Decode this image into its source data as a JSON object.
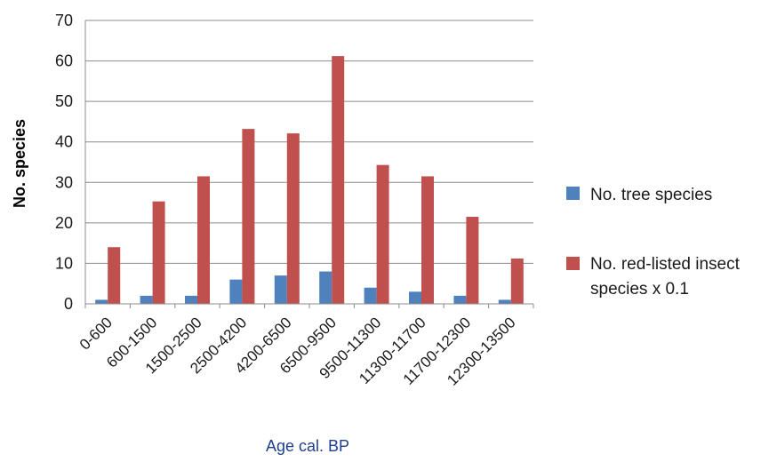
{
  "chart_data": {
    "type": "bar",
    "title": "",
    "xlabel": "Age cal. BP",
    "ylabel": "No. species",
    "ylim": [
      0,
      70
    ],
    "yticks": [
      0,
      10,
      20,
      30,
      40,
      50,
      60,
      70
    ],
    "grid": true,
    "legend_position": "right",
    "categories": [
      "0-600",
      "600-1500",
      "1500-2500",
      "2500-4200",
      "4200-6500",
      "6500-9500",
      "9500-11300",
      "11300-11700",
      "11700-12300",
      "12300-13500"
    ],
    "series": [
      {
        "name": "No. tree species",
        "legend_lines": [
          "No. tree species"
        ],
        "color": "#4f81bd",
        "values": [
          1,
          2,
          2,
          6,
          7,
          8,
          4,
          3,
          2,
          1
        ]
      },
      {
        "name": "No. red-listed insect species x 0.1",
        "legend_lines": [
          "No. red-listed insect",
          "species x 0.1"
        ],
        "color": "#c0504d",
        "values": [
          14,
          25.3,
          31.5,
          43.2,
          42.1,
          61.2,
          34.3,
          31.5,
          21.5,
          11.2
        ]
      }
    ]
  }
}
